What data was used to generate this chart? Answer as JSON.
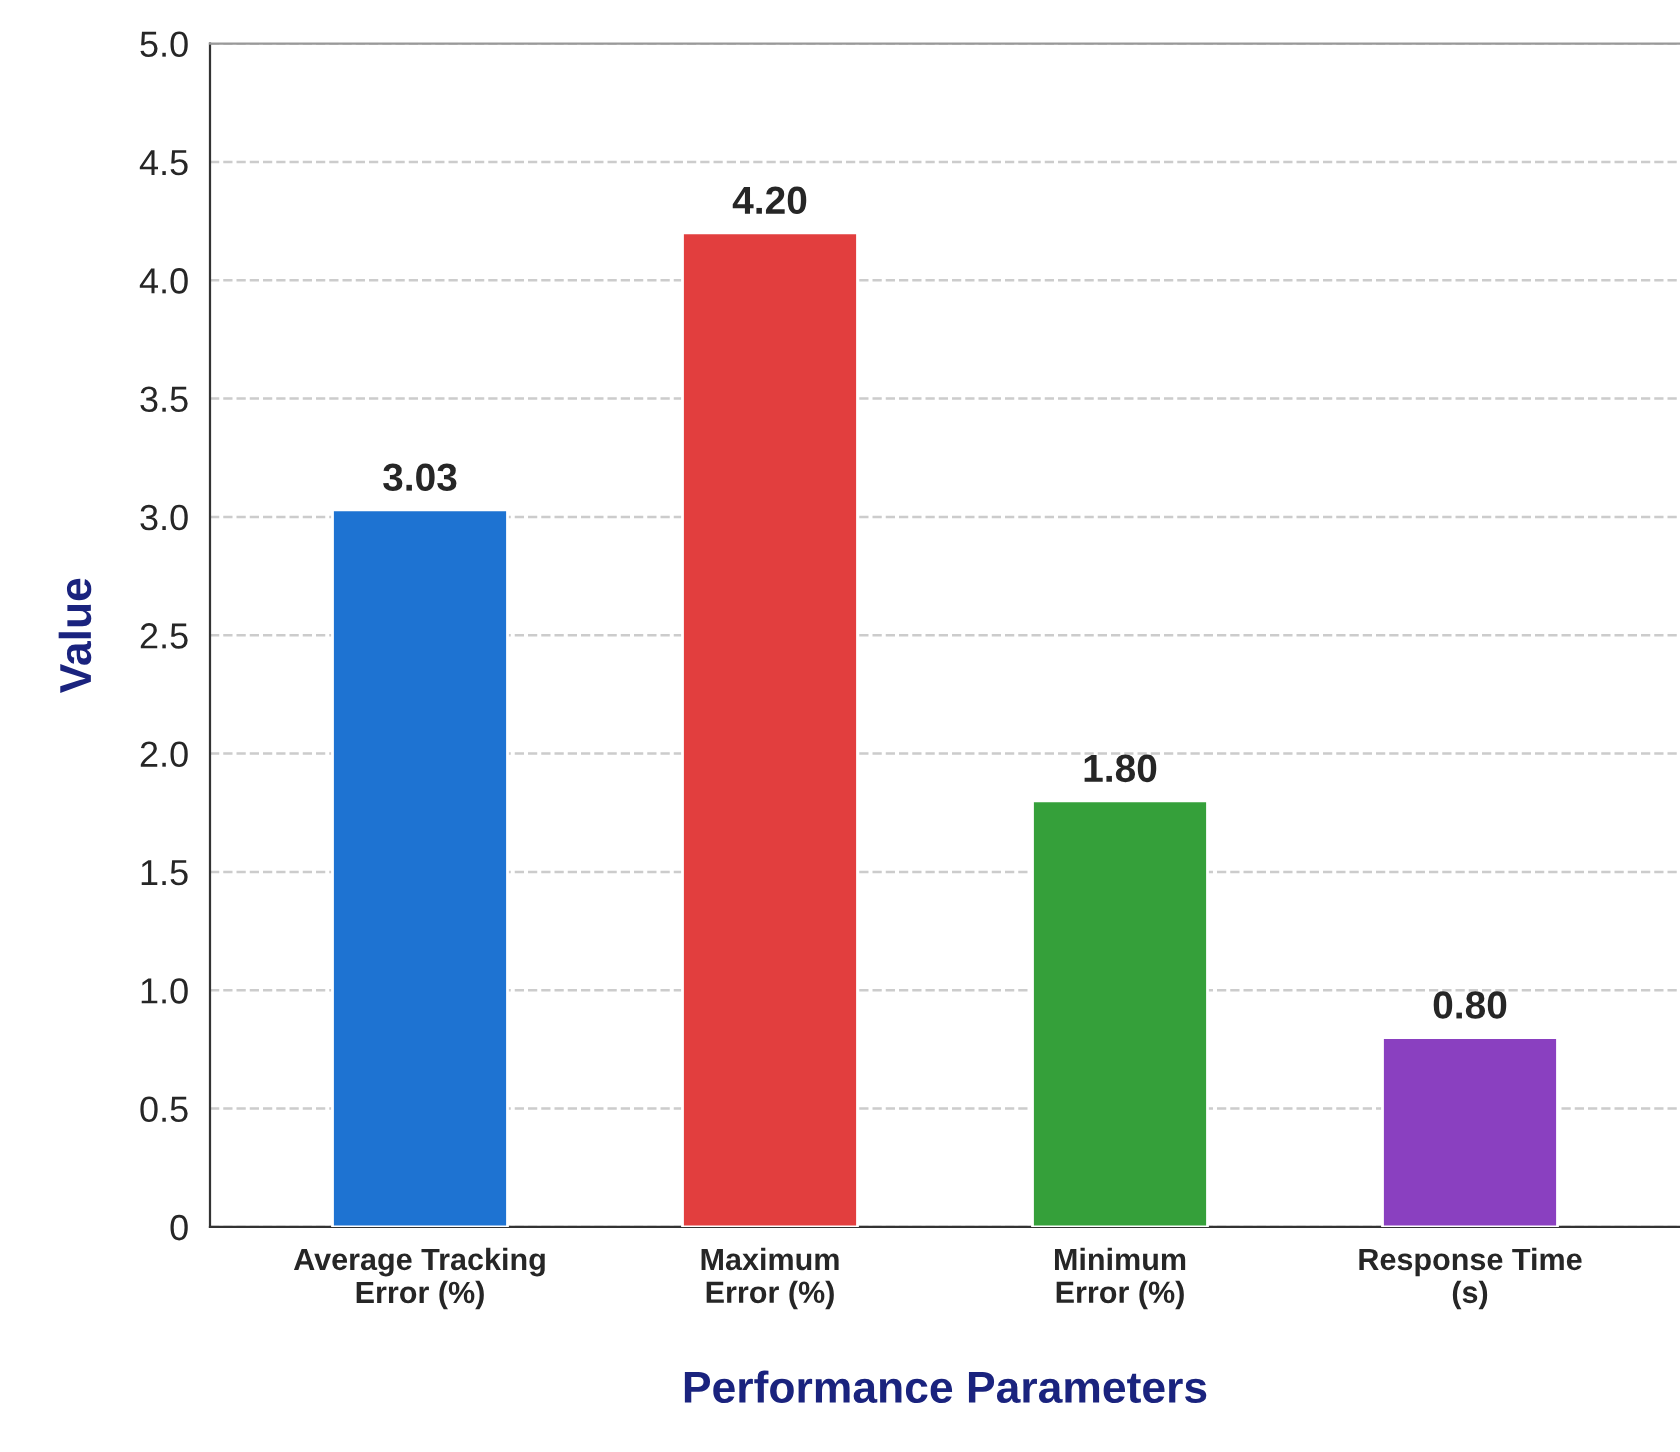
{
  "chart_data": {
    "type": "bar",
    "xlabel": "Performance Parameters",
    "ylabel": "Value",
    "categories": [
      "Average Tracking\nError (%)",
      "Maximum\nError (%)",
      "Minimum\nError (%)",
      "Response Time\n(s)"
    ],
    "values": [
      3.03,
      4.2,
      1.8,
      0.8
    ],
    "colors": [
      "#1e73d2",
      "#e23e3e",
      "#35a03a",
      "#8a40c0"
    ],
    "value_labels": [
      "3.03",
      "4.20",
      "1.80",
      "0.80"
    ],
    "ylim": [
      0,
      5
    ],
    "yticks": [
      0,
      0.5,
      {
        "value": 1,
        "label": "1.0"
      },
      1.5,
      {
        "value": 2,
        "label": "2.0"
      },
      2.5,
      {
        "value": 3,
        "label": "3.0"
      },
      3.5,
      {
        "value": 4,
        "label": "4.0"
      },
      4.5,
      {
        "value": 5,
        "label": "5.0"
      }
    ],
    "grid": "y"
  }
}
